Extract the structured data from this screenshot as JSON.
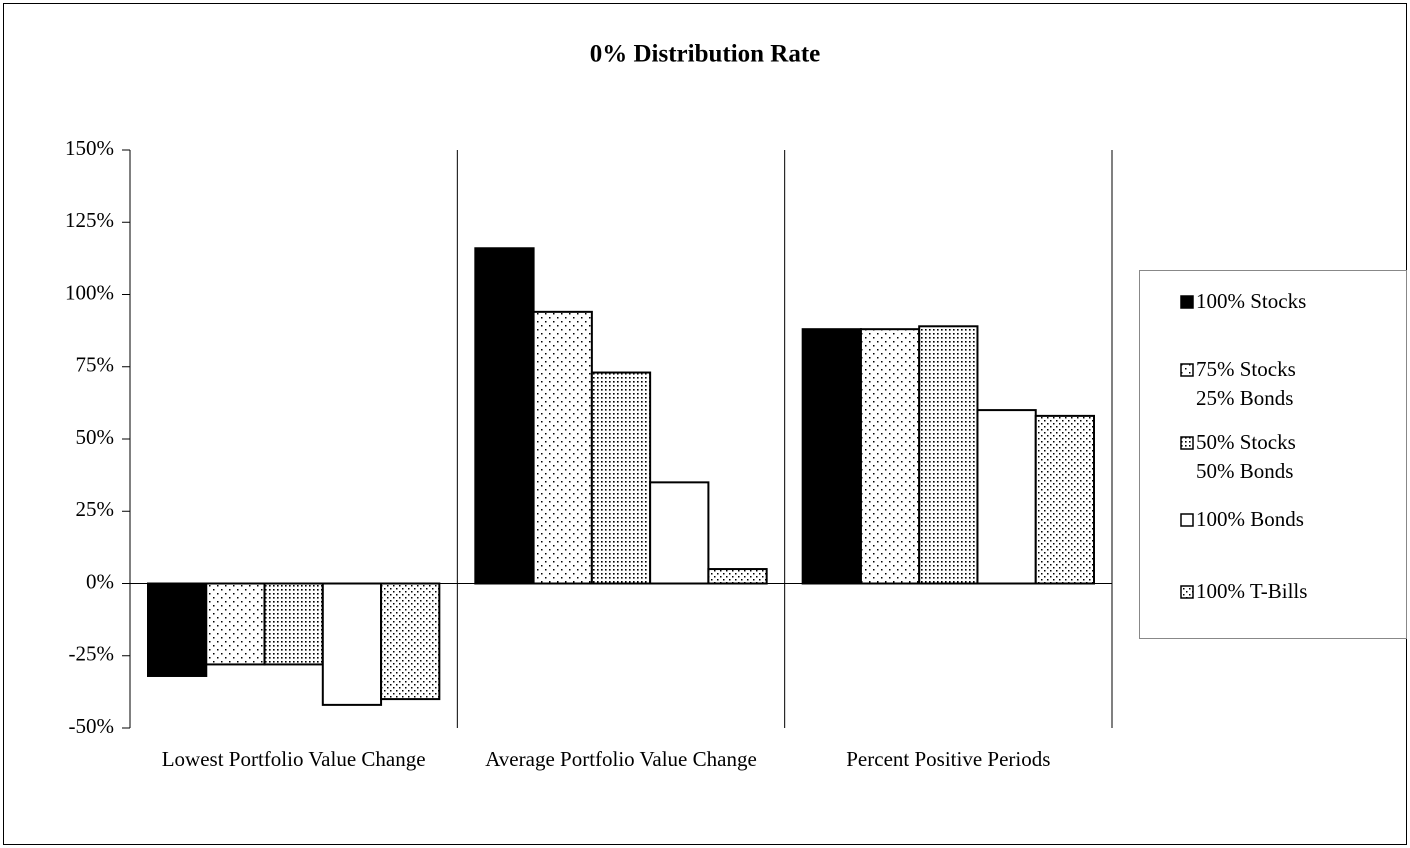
{
  "chart_data": {
    "type": "bar",
    "title": "0% Distribution Rate",
    "categories": [
      "Lowest Portfolio Value Change",
      "Average Portfolio Value Change",
      "Percent Positive Periods"
    ],
    "series": [
      {
        "name": "100% Stocks",
        "color": "#000000",
        "values": [
          -32,
          116,
          88
        ]
      },
      {
        "name": "75% Stocks\n25% Bonds",
        "color": "#ffffff",
        "values": [
          -28,
          94,
          88
        ]
      },
      {
        "name": "50% Stocks\n50% Bonds",
        "color": "#ffffff",
        "values": [
          -28,
          73,
          89
        ]
      },
      {
        "name": "100% Bonds",
        "color": "#ffffff",
        "values": [
          -42,
          35,
          60
        ]
      },
      {
        "name": "100% T-Bills",
        "color": "#ffffff",
        "values": [
          -40,
          5,
          58
        ]
      }
    ],
    "ylim": [
      -50,
      150
    ],
    "yticks": [
      {
        "value": -50,
        "label": "-50%"
      },
      {
        "value": -25,
        "label": "-25%"
      },
      {
        "value": 0,
        "label": "0%"
      },
      {
        "value": 25,
        "label": "25%"
      },
      {
        "value": 50,
        "label": "50%"
      },
      {
        "value": 75,
        "label": "75%"
      },
      {
        "value": 100,
        "label": "100%"
      },
      {
        "value": 125,
        "label": "125%"
      },
      {
        "value": 150,
        "label": "150%"
      }
    ],
    "legend": "right"
  }
}
